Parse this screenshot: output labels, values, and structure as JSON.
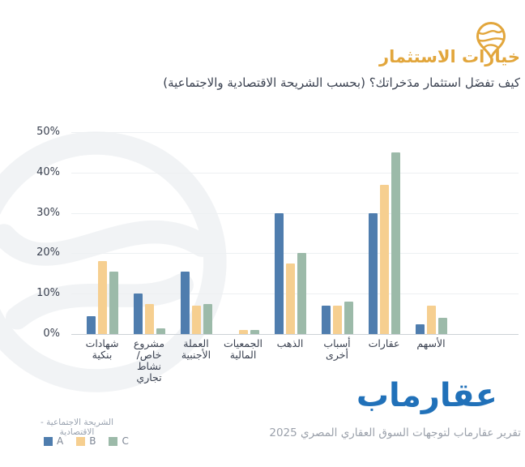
{
  "header": {
    "title": "خيارات الاستثمار",
    "subtitle": "كيف تفضَل استثمار مدَخراتك؟ (بحسب الشريحة الاقتصادية والاجتماعية)",
    "accent_color": "#E2A63C",
    "logo_icon": "aqarmap-pin-icon"
  },
  "chart_data": {
    "type": "bar",
    "direction": "rtl",
    "title": "خيارات الاستثمار",
    "xlabel": "",
    "ylabel": "",
    "ylim": [
      0,
      50
    ],
    "yticks": [
      "0%",
      "10%",
      "20%",
      "30%",
      "40%",
      "50%"
    ],
    "grid": true,
    "categories": [
      "شهادات بنكية",
      "مشروع خاص/ نشاط تجاري",
      "العملة الأجنبية",
      "الجمعيات المالية",
      "الذهب",
      "أسباب أخرى",
      "عقارات",
      "الأسهم"
    ],
    "categories_display": [
      [
        "شهادات",
        "بنكية"
      ],
      [
        "مشروع",
        "خاص/",
        "نشاط",
        "تجاري"
      ],
      [
        "العملة",
        "الأجنبية"
      ],
      [
        "الجمعيات",
        "المالية"
      ],
      [
        "الذهب"
      ],
      [
        "أسباب",
        "أخرى"
      ],
      [
        "عقارات"
      ],
      [
        "الأسهم"
      ]
    ],
    "series": [
      {
        "name": "A",
        "color": "#4F7DAE",
        "values": [
          4.5,
          10,
          15.5,
          0,
          30,
          7,
          30,
          2.5
        ]
      },
      {
        "name": "B",
        "color": "#F6CF90",
        "values": [
          18,
          7.5,
          7,
          1,
          17.5,
          7,
          37,
          7
        ]
      },
      {
        "name": "C",
        "color": "#9CBAA9",
        "values": [
          15.5,
          1.5,
          7.5,
          1,
          20,
          8,
          45,
          4
        ]
      }
    ],
    "legend_title": "الشريحة الاجتماعية - الاقتصادية",
    "legend_position": "bottom-left"
  },
  "footer": {
    "brand": "عقارماب",
    "brand_color": "#2171B9",
    "report_line": "تقرير عقارماب لتوجهات السوق العقاري المصري 2025"
  }
}
